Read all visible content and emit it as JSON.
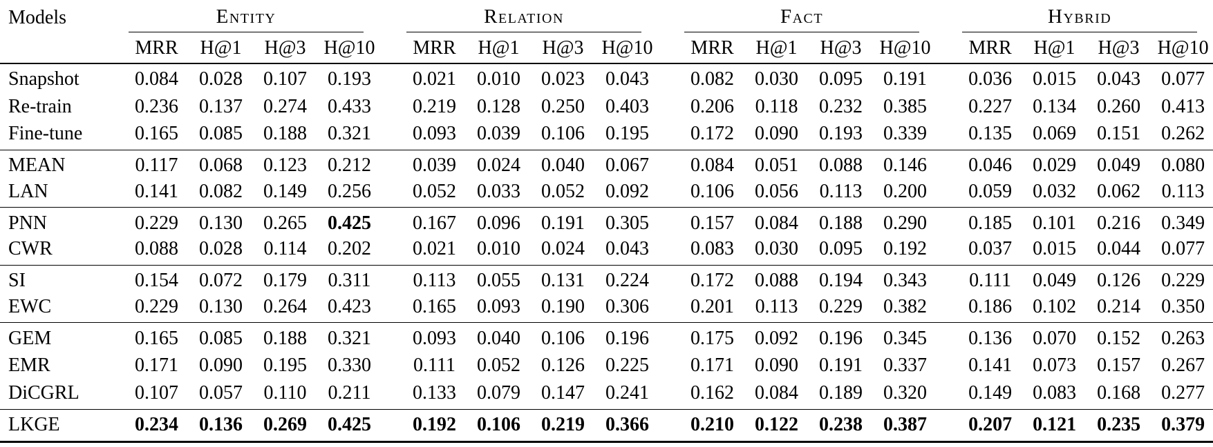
{
  "table": {
    "models_header": "Models",
    "column_groups": [
      {
        "label": "Entity"
      },
      {
        "label": "Relation"
      },
      {
        "label": "Fact"
      },
      {
        "label": "Hybrid"
      }
    ],
    "sub_headers": [
      "MRR",
      "H@1",
      "H@3",
      "H@10"
    ],
    "row_groups": [
      {
        "rows": [
          {
            "model": "Snapshot",
            "values": [
              "0.084",
              "0.028",
              "0.107",
              "0.193",
              "0.021",
              "0.010",
              "0.023",
              "0.043",
              "0.082",
              "0.030",
              "0.095",
              "0.191",
              "0.036",
              "0.015",
              "0.043",
              "0.077"
            ]
          },
          {
            "model": "Re-train",
            "values": [
              "0.236",
              "0.137",
              "0.274",
              "0.433",
              "0.219",
              "0.128",
              "0.250",
              "0.403",
              "0.206",
              "0.118",
              "0.232",
              "0.385",
              "0.227",
              "0.134",
              "0.260",
              "0.413"
            ]
          },
          {
            "model": "Fine-tune",
            "values": [
              "0.165",
              "0.085",
              "0.188",
              "0.321",
              "0.093",
              "0.039",
              "0.106",
              "0.195",
              "0.172",
              "0.090",
              "0.193",
              "0.339",
              "0.135",
              "0.069",
              "0.151",
              "0.262"
            ]
          }
        ]
      },
      {
        "rows": [
          {
            "model": "MEAN",
            "values": [
              "0.117",
              "0.068",
              "0.123",
              "0.212",
              "0.039",
              "0.024",
              "0.040",
              "0.067",
              "0.084",
              "0.051",
              "0.088",
              "0.146",
              "0.046",
              "0.029",
              "0.049",
              "0.080"
            ]
          },
          {
            "model": "LAN",
            "values": [
              "0.141",
              "0.082",
              "0.149",
              "0.256",
              "0.052",
              "0.033",
              "0.052",
              "0.092",
              "0.106",
              "0.056",
              "0.113",
              "0.200",
              "0.059",
              "0.032",
              "0.062",
              "0.113"
            ]
          }
        ]
      },
      {
        "rows": [
          {
            "model": "PNN",
            "values": [
              "0.229",
              "0.130",
              "0.265",
              "0.425",
              "0.167",
              "0.096",
              "0.191",
              "0.305",
              "0.157",
              "0.084",
              "0.188",
              "0.290",
              "0.185",
              "0.101",
              "0.216",
              "0.349"
            ],
            "bold_indices": [
              3
            ]
          },
          {
            "model": "CWR",
            "values": [
              "0.088",
              "0.028",
              "0.114",
              "0.202",
              "0.021",
              "0.010",
              "0.024",
              "0.043",
              "0.083",
              "0.030",
              "0.095",
              "0.192",
              "0.037",
              "0.015",
              "0.044",
              "0.077"
            ]
          }
        ]
      },
      {
        "rows": [
          {
            "model": "SI",
            "values": [
              "0.154",
              "0.072",
              "0.179",
              "0.311",
              "0.113",
              "0.055",
              "0.131",
              "0.224",
              "0.172",
              "0.088",
              "0.194",
              "0.343",
              "0.111",
              "0.049",
              "0.126",
              "0.229"
            ]
          },
          {
            "model": "EWC",
            "values": [
              "0.229",
              "0.130",
              "0.264",
              "0.423",
              "0.165",
              "0.093",
              "0.190",
              "0.306",
              "0.201",
              "0.113",
              "0.229",
              "0.382",
              "0.186",
              "0.102",
              "0.214",
              "0.350"
            ]
          }
        ]
      },
      {
        "rows": [
          {
            "model": "GEM",
            "values": [
              "0.165",
              "0.085",
              "0.188",
              "0.321",
              "0.093",
              "0.040",
              "0.106",
              "0.196",
              "0.175",
              "0.092",
              "0.196",
              "0.345",
              "0.136",
              "0.070",
              "0.152",
              "0.263"
            ]
          },
          {
            "model": "EMR",
            "values": [
              "0.171",
              "0.090",
              "0.195",
              "0.330",
              "0.111",
              "0.052",
              "0.126",
              "0.225",
              "0.171",
              "0.090",
              "0.191",
              "0.337",
              "0.141",
              "0.073",
              "0.157",
              "0.267"
            ]
          },
          {
            "model": "DiCGRL",
            "values": [
              "0.107",
              "0.057",
              "0.110",
              "0.211",
              "0.133",
              "0.079",
              "0.147",
              "0.241",
              "0.162",
              "0.084",
              "0.189",
              "0.320",
              "0.149",
              "0.083",
              "0.168",
              "0.277"
            ]
          }
        ]
      },
      {
        "rows": [
          {
            "model": "LKGE",
            "values": [
              "0.234",
              "0.136",
              "0.269",
              "0.425",
              "0.192",
              "0.106",
              "0.219",
              "0.366",
              "0.210",
              "0.122",
              "0.238",
              "0.387",
              "0.207",
              "0.121",
              "0.235",
              "0.379"
            ],
            "bold_indices": [
              0,
              1,
              2,
              3,
              4,
              5,
              6,
              7,
              8,
              9,
              10,
              11,
              12,
              13,
              14,
              15
            ]
          }
        ]
      }
    ]
  }
}
